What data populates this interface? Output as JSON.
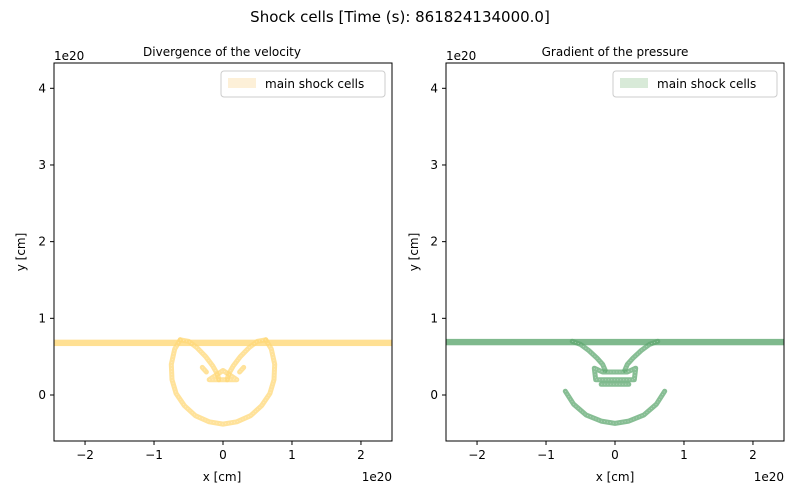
{
  "figure": {
    "title": "Shock cells [Time (s): 861824134000.0]"
  },
  "chart_data": [
    {
      "type": "scatter",
      "title": "Divergence of the velocity",
      "xlabel": "x [cm]",
      "ylabel": "y [cm]",
      "x_offset_label": "1e20",
      "y_offset_label": "1e20",
      "xlim": [
        -2.45,
        2.45
      ],
      "ylim": [
        -0.6,
        4.33
      ],
      "xticks": [
        -2,
        -1,
        0,
        1,
        2
      ],
      "yticks": [
        0,
        1,
        2,
        3,
        4
      ],
      "grid": false,
      "legend": "upper right",
      "series": [
        {
          "name": "main shock cells",
          "color": "#ffd878",
          "legend_patch_color": "#fdf0d8",
          "description_points": {
            "horizontal_band": {
              "x_range": [
                -2.45,
                2.45
              ],
              "y": 0.68
            },
            "loops": [
              [
                [
                  -0.62,
                  0.72
                ],
                [
                  -0.7,
                  0.6
                ],
                [
                  -0.75,
                  0.4
                ],
                [
                  -0.74,
                  0.2
                ],
                [
                  -0.68,
                  0.02
                ],
                [
                  -0.56,
                  -0.14
                ],
                [
                  -0.4,
                  -0.27
                ],
                [
                  -0.2,
                  -0.35
                ],
                [
                  0.0,
                  -0.38
                ],
                [
                  0.2,
                  -0.35
                ],
                [
                  0.4,
                  -0.27
                ],
                [
                  0.56,
                  -0.14
                ],
                [
                  0.68,
                  0.02
                ],
                [
                  0.74,
                  0.2
                ],
                [
                  0.75,
                  0.4
                ],
                [
                  0.7,
                  0.6
                ],
                [
                  0.62,
                  0.72
                ]
              ],
              [
                [
                  -0.62,
                  0.72
                ],
                [
                  -0.5,
                  0.7
                ],
                [
                  -0.38,
                  0.62
                ],
                [
                  -0.25,
                  0.5
                ],
                [
                  -0.15,
                  0.38
                ],
                [
                  -0.08,
                  0.27
                ],
                [
                  -0.06,
                  0.2
                ]
              ],
              [
                [
                  0.62,
                  0.72
                ],
                [
                  0.5,
                  0.7
                ],
                [
                  0.38,
                  0.62
                ],
                [
                  0.25,
                  0.5
                ],
                [
                  0.15,
                  0.38
                ],
                [
                  0.08,
                  0.27
                ],
                [
                  0.06,
                  0.2
                ]
              ],
              [
                [
                  -0.2,
                  0.2
                ],
                [
                  0.2,
                  0.2
                ],
                [
                  0.0,
                  0.32
                ],
                [
                  -0.2,
                  0.2
                ]
              ],
              [
                [
                  -0.3,
                  0.36
                ],
                [
                  -0.24,
                  0.3
                ]
              ],
              [
                [
                  0.24,
                  0.3
                ],
                [
                  0.3,
                  0.36
                ]
              ]
            ]
          }
        }
      ]
    },
    {
      "type": "scatter",
      "title": "Gradient of the pressure",
      "xlabel": "x [cm]",
      "ylabel": "y [cm]",
      "x_offset_label": "1e20",
      "y_offset_label": "1e20",
      "xlim": [
        -2.45,
        2.45
      ],
      "ylim": [
        -0.6,
        4.33
      ],
      "xticks": [
        -2,
        -1,
        0,
        1,
        2
      ],
      "yticks": [
        0,
        1,
        2,
        3,
        4
      ],
      "grid": false,
      "legend": "upper right",
      "series": [
        {
          "name": "main shock cells",
          "color": "#5fa870",
          "legend_patch_color": "#d8ead8",
          "description_points": {
            "horizontal_band": {
              "x_range": [
                -2.45,
                2.45
              ],
              "y": 0.69
            },
            "loops": [
              [
                [
                  -0.72,
                  0.05
                ],
                [
                  -0.6,
                  -0.12
                ],
                [
                  -0.42,
                  -0.26
                ],
                [
                  -0.2,
                  -0.34
                ],
                [
                  0.0,
                  -0.37
                ],
                [
                  0.2,
                  -0.34
                ],
                [
                  0.42,
                  -0.26
                ],
                [
                  0.6,
                  -0.12
                ],
                [
                  0.72,
                  0.05
                ]
              ],
              [
                [
                  -0.62,
                  0.7
                ],
                [
                  -0.5,
                  0.66
                ],
                [
                  -0.38,
                  0.58
                ],
                [
                  -0.26,
                  0.48
                ],
                [
                  -0.18,
                  0.4
                ],
                [
                  -0.14,
                  0.32
                ]
              ],
              [
                [
                  0.62,
                  0.7
                ],
                [
                  0.5,
                  0.66
                ],
                [
                  0.38,
                  0.58
                ],
                [
                  0.26,
                  0.48
                ],
                [
                  0.18,
                  0.4
                ],
                [
                  0.14,
                  0.32
                ]
              ],
              [
                [
                  -0.3,
                  0.35
                ],
                [
                  -0.28,
                  0.2
                ],
                [
                  0.28,
                  0.2
                ],
                [
                  0.3,
                  0.35
                ],
                [
                  0.18,
                  0.3
                ],
                [
                  -0.18,
                  0.3
                ],
                [
                  -0.3,
                  0.35
                ]
              ],
              [
                [
                  -0.2,
                  0.14
                ],
                [
                  0.2,
                  0.14
                ]
              ]
            ]
          }
        }
      ]
    }
  ]
}
